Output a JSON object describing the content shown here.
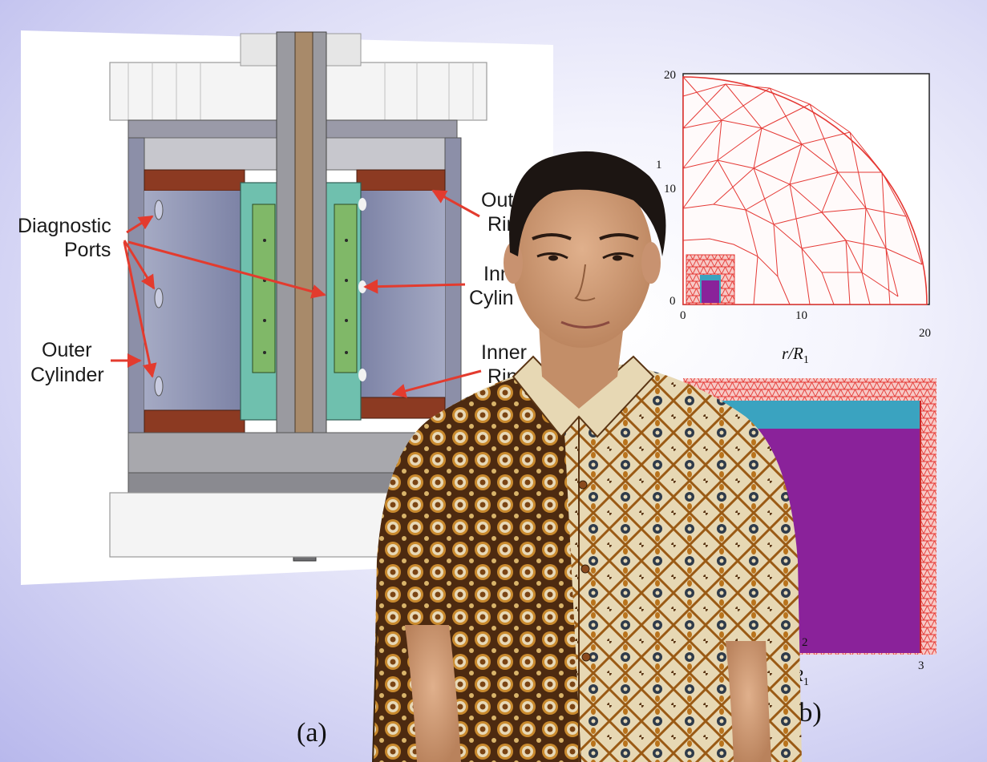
{
  "left_panel": {
    "labels": {
      "diagnostic_1": "Diagnostic",
      "diagnostic_2": "Ports",
      "outer_cyl_1": "Outer",
      "outer_cyl_2": "Cylinder",
      "outer_ring_1": "Out",
      "outer_ring_2": "Rin",
      "inner_cyl_1": "Inn",
      "inner_cyl_2": "Cylin",
      "inner_ring_1": "Inner",
      "inner_ring_2": "Rin"
    },
    "panel_label": "(a)"
  },
  "right_panel": {
    "top_plot": {
      "yticks": [
        "20",
        "10",
        "0"
      ],
      "xticks": [
        "0",
        "10",
        "20"
      ],
      "xlabel": "r/R",
      "xlabel_sub": "1",
      "ylabel_partial": "1"
    },
    "bottom_plot": {
      "xticks": [
        "2",
        "3"
      ],
      "xlabel": "r/R",
      "xlabel_sub": "1"
    },
    "panel_label": "(b)"
  },
  "colors": {
    "arrow": "#e33b2e",
    "mesh": "#e53935",
    "fluid": "#9aa0bd",
    "inner_cyl": "#6fc0ae",
    "rings": "#8c3a22",
    "purple": "#8a229a",
    "teal": "#3aa3c0",
    "shirt_dark": "#4d2a10",
    "shirt_light": "#e7d8b4",
    "shirt_gold": "#b9731c"
  }
}
